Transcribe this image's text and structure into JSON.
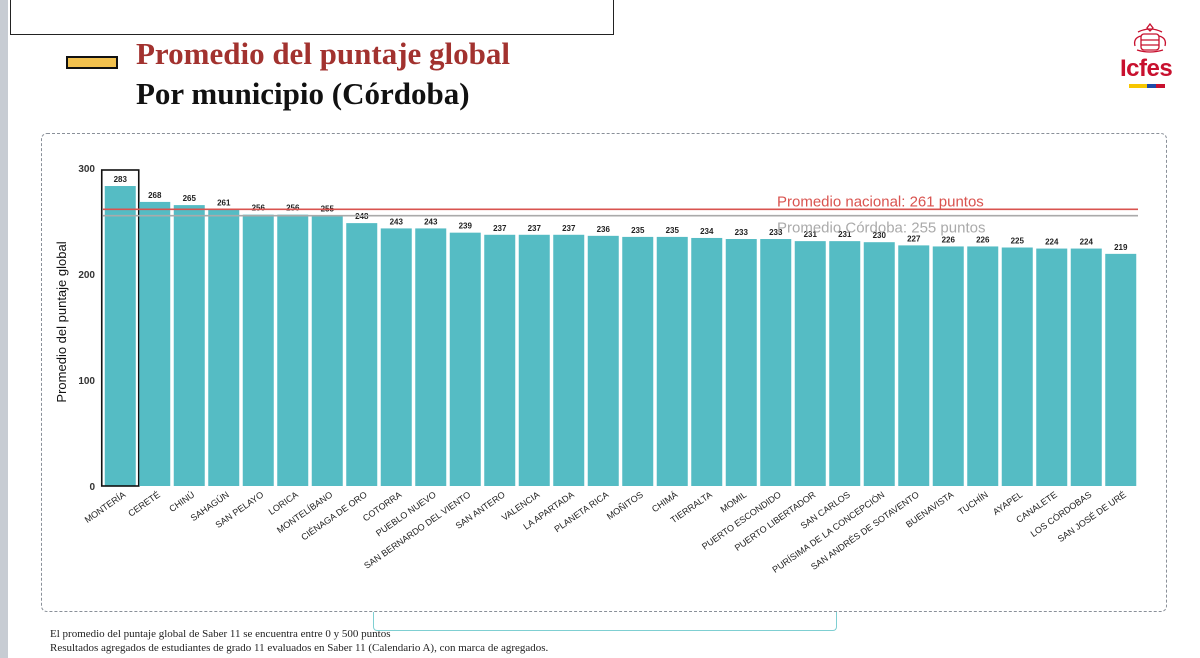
{
  "header": {
    "title": "Promedio del puntaje global",
    "subtitle": "Por municipio (Córdoba)",
    "logo_text": "Icfes"
  },
  "colors": {
    "bar": "#55bcc4",
    "title": "#a2322f",
    "national_line": "#d9534f",
    "cordoba_line": "#aaaaaa",
    "legend_swatch": "#f2c14e"
  },
  "chart_data": {
    "type": "bar",
    "title": "Promedio del puntaje global",
    "xlabel": "",
    "ylabel": "Promedio del puntaje global",
    "ylim": [
      0,
      300
    ],
    "yticks": [
      0,
      100,
      200,
      300
    ],
    "categories": [
      "MONTERÍA",
      "CERETÉ",
      "CHINÚ",
      "SAHAGÚN",
      "SAN PELAYO",
      "LORICA",
      "MONTELÍBANO",
      "CIÉNAGA DE ORO",
      "COTORRA",
      "PUEBLO NUEVO",
      "SAN BERNARDO DEL VIENTO",
      "SAN ANTERO",
      "VALENCIA",
      "LA APARTADA",
      "PLANETA RICA",
      "MOÑITOS",
      "CHIMÁ",
      "TIERRALTA",
      "MOMIL",
      "PUERTO ESCONDIDO",
      "PUERTO LIBERTADOR",
      "SAN CARLOS",
      "PURÍSIMA DE LA CONCEPCIÓN",
      "SAN ANDRÉS DE SOTAVENTO",
      "BUENAVISTA",
      "TUCHÍN",
      "AYAPEL",
      "CANALETE",
      "LOS CÓRDOBAS",
      "SAN JOSÉ DE URÉ"
    ],
    "values": [
      283,
      268,
      265,
      261,
      256,
      256,
      255,
      248,
      243,
      243,
      239,
      237,
      237,
      237,
      236,
      235,
      235,
      234,
      233,
      233,
      231,
      231,
      230,
      227,
      226,
      226,
      225,
      224,
      224,
      219
    ],
    "highlighted": "MONTERÍA",
    "reference_lines": [
      {
        "label": "Promedio nacional: 261 puntos",
        "value": 261
      },
      {
        "label": "Promedio Córdoba: 255 puntos",
        "value": 255
      }
    ]
  },
  "footnotes": {
    "line1": "El promedio del puntaje global de Saber 11 se encuentra entre 0 y 500 puntos",
    "line2": "Resultados agregados de estudiantes de grado 11 evaluados en Saber 11 (Calendario A), con marca de agregados."
  }
}
